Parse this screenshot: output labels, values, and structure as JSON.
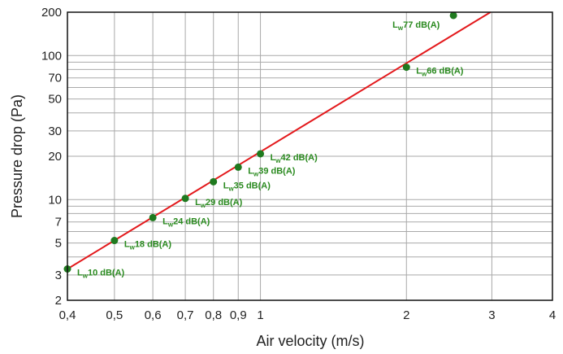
{
  "chart_data": {
    "type": "line",
    "xlabel": "Air velocity (m/s)",
    "ylabel": "Pressure drop (Pa)",
    "xscale": "log",
    "yscale": "log",
    "xlim": [
      0.4,
      4
    ],
    "ylim": [
      2,
      200
    ],
    "grid": true,
    "colors": {
      "line": "#e3191c",
      "points": "#1f7a1f",
      "labels": "#2a8a1f",
      "grid": "#a9a9a9"
    },
    "x_ticks": [
      {
        "value": 0.4,
        "label": "0,4"
      },
      {
        "value": 0.5,
        "label": "0,5"
      },
      {
        "value": 0.6,
        "label": "0,6"
      },
      {
        "value": 0.7,
        "label": "0,7"
      },
      {
        "value": 0.8,
        "label": "0,8"
      },
      {
        "value": 0.9,
        "label": "0,9"
      },
      {
        "value": 1,
        "label": "1"
      },
      {
        "value": 2,
        "label": "2"
      },
      {
        "value": 3,
        "label": "3"
      },
      {
        "value": 4,
        "label": "4"
      }
    ],
    "y_ticks": [
      {
        "value": 2,
        "label": "2"
      },
      {
        "value": 3,
        "label": "3"
      },
      {
        "value": 5,
        "label": "5"
      },
      {
        "value": 7,
        "label": "7"
      },
      {
        "value": 10,
        "label": "10"
      },
      {
        "value": 20,
        "label": "20"
      },
      {
        "value": 30,
        "label": "30"
      },
      {
        "value": 50,
        "label": "50"
      },
      {
        "value": 70,
        "label": "70"
      },
      {
        "value": 100,
        "label": "100"
      },
      {
        "value": 200,
        "label": "200"
      }
    ],
    "y_grid_values": [
      2,
      3,
      4,
      5,
      6,
      7,
      8,
      9,
      10,
      20,
      30,
      40,
      50,
      60,
      70,
      80,
      90,
      100,
      200
    ],
    "x_grid_values": [
      0.5,
      0.6,
      0.7,
      0.8,
      0.9,
      1,
      2,
      3
    ],
    "line": {
      "x": [
        0.4,
        2.98
      ],
      "y": [
        3.3,
        200
      ]
    },
    "points": [
      {
        "x": 0.4,
        "y": 3.3,
        "label_prefix": "L",
        "label_sub": "w",
        "label_value": "10 dB(A)"
      },
      {
        "x": 0.5,
        "y": 5.2,
        "label_prefix": "L",
        "label_sub": "w",
        "label_value": "18 dB(A)"
      },
      {
        "x": 0.6,
        "y": 7.5,
        "label_prefix": "L",
        "label_sub": "w",
        "label_value": "24 dB(A)"
      },
      {
        "x": 0.7,
        "y": 10.2,
        "label_prefix": "L",
        "label_sub": "w",
        "label_value": "29 dB(A)"
      },
      {
        "x": 0.8,
        "y": 13.3,
        "label_prefix": "L",
        "label_sub": "w",
        "label_value": "35 dB(A)"
      },
      {
        "x": 0.9,
        "y": 16.8,
        "label_prefix": "L",
        "label_sub": "w",
        "label_value": "39 dB(A)"
      },
      {
        "x": 1.0,
        "y": 20.8,
        "label_prefix": "L",
        "label_sub": "w",
        "label_value": "42 dB(A)"
      },
      {
        "x": 2.0,
        "y": 83,
        "label_prefix": "L",
        "label_sub": "w",
        "label_value": "66 dB(A)"
      },
      {
        "x": 2.5,
        "y": 190,
        "label_prefix": "L",
        "label_sub": "w",
        "label_value": "77 dB(A)"
      }
    ]
  }
}
